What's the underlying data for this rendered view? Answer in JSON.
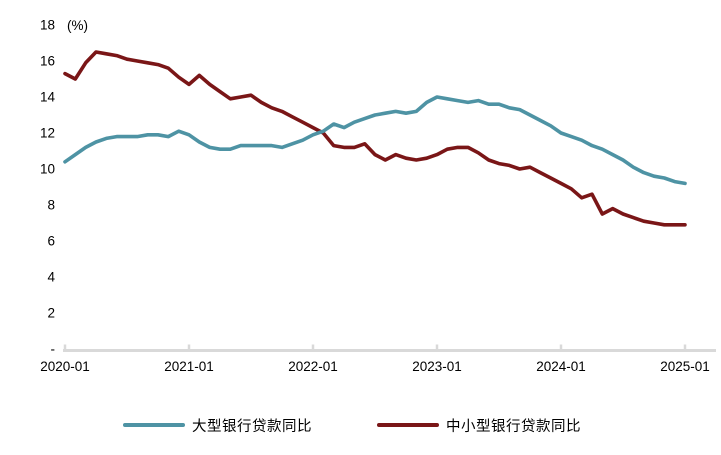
{
  "chart_data": {
    "type": "line",
    "title": "",
    "unit_label": "(%)",
    "xlabel": "",
    "ylabel": "(%)",
    "ylim": [
      0,
      18
    ],
    "y_tick_step": 2,
    "grid": false,
    "legend_position": "bottom",
    "axis_color": "#D9D9D9",
    "text_color": "#000000",
    "x_tick_labels": [
      "2020-01",
      "2021-01",
      "2022-01",
      "2023-01",
      "2024-01",
      "2025-01"
    ],
    "y_tick_labels": [
      "-",
      "2",
      "4",
      "6",
      "8",
      "10",
      "12",
      "14",
      "16",
      "18"
    ],
    "months": [
      "2020-01",
      "2020-02",
      "2020-03",
      "2020-04",
      "2020-05",
      "2020-06",
      "2020-07",
      "2020-08",
      "2020-09",
      "2020-10",
      "2020-11",
      "2020-12",
      "2021-01",
      "2021-02",
      "2021-03",
      "2021-04",
      "2021-05",
      "2021-06",
      "2021-07",
      "2021-08",
      "2021-09",
      "2021-10",
      "2021-11",
      "2021-12",
      "2022-01",
      "2022-02",
      "2022-03",
      "2022-04",
      "2022-05",
      "2022-06",
      "2022-07",
      "2022-08",
      "2022-09",
      "2022-10",
      "2022-11",
      "2022-12",
      "2023-01",
      "2023-02",
      "2023-03",
      "2023-04",
      "2023-05",
      "2023-06",
      "2023-07",
      "2023-08",
      "2023-09",
      "2023-10",
      "2023-11",
      "2023-12",
      "2024-01",
      "2024-02",
      "2024-03",
      "2024-04",
      "2024-05",
      "2024-06",
      "2024-07",
      "2024-08",
      "2024-09",
      "2024-10",
      "2024-11",
      "2024-12",
      "2025-01"
    ],
    "series": [
      {
        "name": "大型银行贷款同比",
        "color": "#4E93A4",
        "values": [
          10.4,
          10.8,
          11.2,
          11.5,
          11.7,
          11.8,
          11.8,
          11.8,
          11.9,
          11.9,
          11.8,
          12.1,
          11.9,
          11.5,
          11.2,
          11.1,
          11.1,
          11.3,
          11.3,
          11.3,
          11.3,
          11.2,
          11.4,
          11.6,
          11.9,
          12.1,
          12.5,
          12.3,
          12.6,
          12.8,
          13.0,
          13.1,
          13.2,
          13.1,
          13.2,
          13.7,
          14.0,
          13.9,
          13.8,
          13.7,
          13.8,
          13.6,
          13.6,
          13.4,
          13.3,
          13.0,
          12.7,
          12.4,
          12.0,
          11.8,
          11.6,
          11.3,
          11.1,
          10.8,
          10.5,
          10.1,
          9.8,
          9.6,
          9.5,
          9.3,
          9.2
        ]
      },
      {
        "name": "中小型银行贷款同比",
        "color": "#7A1617",
        "values": [
          15.3,
          15.0,
          15.9,
          16.5,
          16.4,
          16.3,
          16.1,
          16.0,
          15.9,
          15.8,
          15.6,
          15.1,
          14.7,
          15.2,
          14.7,
          14.3,
          13.9,
          14.0,
          14.1,
          13.7,
          13.4,
          13.2,
          12.9,
          12.6,
          12.3,
          12.0,
          11.3,
          11.2,
          11.2,
          11.4,
          10.8,
          10.5,
          10.8,
          10.6,
          10.5,
          10.6,
          10.8,
          11.1,
          11.2,
          11.2,
          10.9,
          10.5,
          10.3,
          10.2,
          10.0,
          10.1,
          9.8,
          9.5,
          9.2,
          8.9,
          8.4,
          8.6,
          7.5,
          7.8,
          7.5,
          7.3,
          7.1,
          7.0,
          6.9,
          6.9,
          6.9
        ]
      }
    ]
  }
}
